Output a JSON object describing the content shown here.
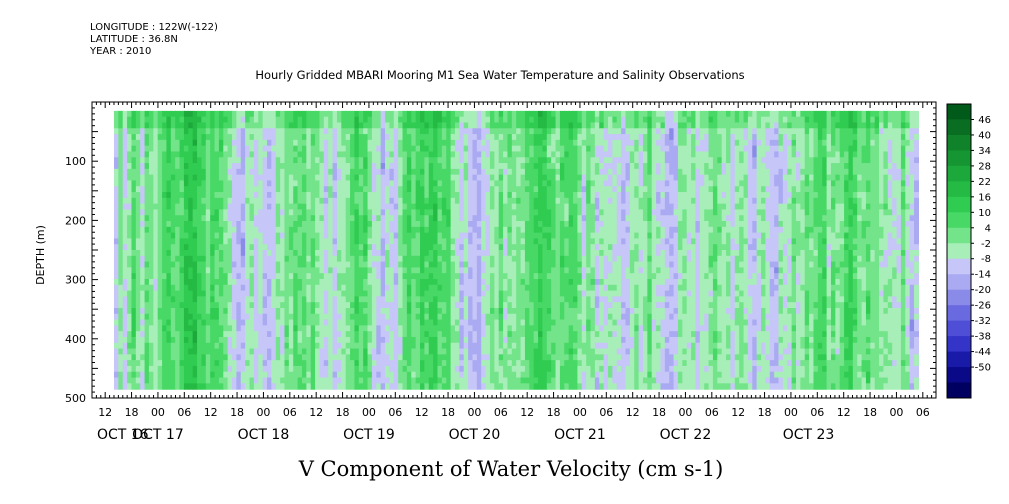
{
  "header": {
    "longitude": "LONGITUDE : 122W(-122)",
    "latitude": "LATITUDE : 36.8N",
    "year": "YEAR : 2010",
    "title": "Hourly Gridded MBARI Mooring M1 Sea Water Temperature and Salinity Observations"
  },
  "chart_data": {
    "type": "heatmap",
    "title": "Hourly Gridded MBARI Mooring M1 Sea Water Temperature and Salinity Observations",
    "xlabel": "V Component of Water Velocity (cm s-1)",
    "ylabel": "DEPTH (m)",
    "y_ticks": [
      100,
      200,
      300,
      400,
      500
    ],
    "ylim": [
      500,
      0
    ],
    "data_depth_range": [
      15,
      485
    ],
    "x_hour_ticks": [
      "12",
      "18",
      "00",
      "06",
      "12",
      "18",
      "00",
      "06",
      "12",
      "18",
      "00",
      "06",
      "12",
      "18",
      "00",
      "06",
      "12",
      "18",
      "00",
      "06",
      "12",
      "18",
      "00",
      "06",
      "12",
      "18",
      "00",
      "06",
      "12",
      "18",
      "00",
      "06"
    ],
    "x_date_labels": [
      "OCT 16",
      "OCT 17",
      "OCT 18",
      "OCT 19",
      "OCT 20",
      "OCT 21",
      "OCT 22",
      "OCT 23"
    ],
    "xlim_hours_from_oct16_00": [
      9,
      201
    ],
    "data_time_range_hours": [
      14,
      197
    ],
    "colorbar_labels": [
      "46",
      "40",
      "34",
      "28",
      "22",
      "16",
      "10",
      "4",
      "-2",
      "-8",
      "-14",
      "-20",
      "-26",
      "-32",
      "-38",
      "-44",
      "-50"
    ],
    "colorbar_colors": [
      "#005a1a",
      "#0a6e22",
      "#10822a",
      "#169632",
      "#1ca83a",
      "#24ba44",
      "#30cc52",
      "#48d866",
      "#74e48a",
      "#a8eeb8",
      "#c6c6f8",
      "#aaaaf2",
      "#8a8ae8",
      "#6a6ae0",
      "#4e4ed6",
      "#3434c8",
      "#1a1aa8",
      "#0a0a88",
      "#000060"
    ],
    "value_range": [
      -50,
      52
    ],
    "dominant_values": "mostly between -14 and 16 cm/s"
  }
}
